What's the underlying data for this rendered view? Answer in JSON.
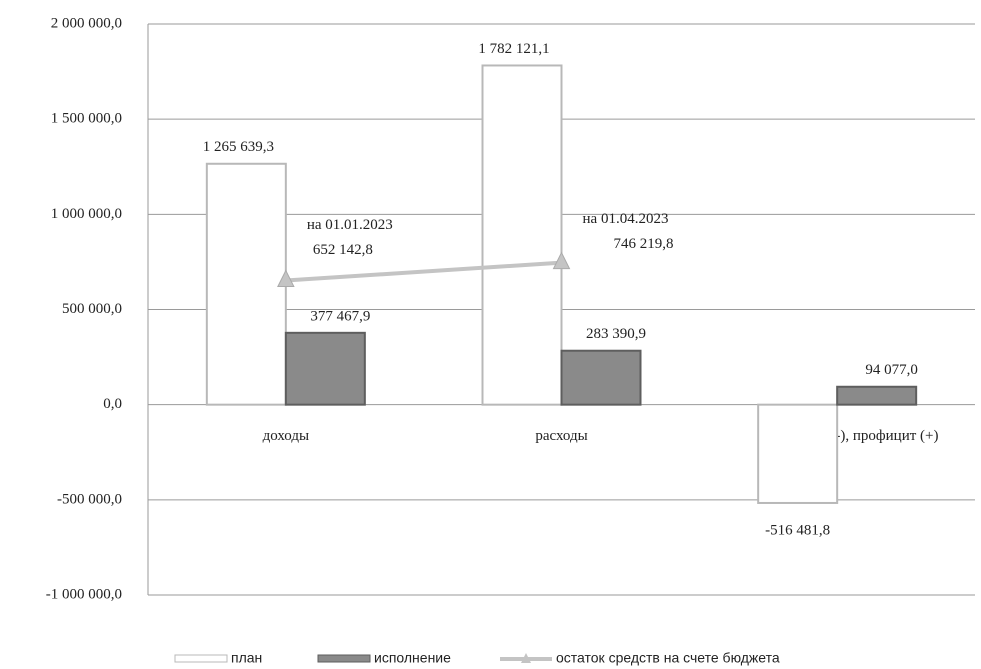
{
  "chart_data": {
    "type": "bar",
    "categories": [
      "доходы",
      "расходы",
      "дефицит (-), профицит (+)"
    ],
    "series": [
      {
        "name": "план",
        "type": "bar",
        "color": "#ffffff",
        "stroke": "#b8b8b8",
        "values": [
          1265639.3,
          1782121.1,
          -516481.8
        ],
        "value_labels": [
          "1 265 639,3",
          "1 782 121,1",
          "-516 481,8"
        ]
      },
      {
        "name": "исполнение",
        "type": "bar",
        "color": "#8a8a8a",
        "stroke": "#5e5e5e",
        "values": [
          377467.9,
          283390.9,
          94077.0
        ],
        "value_labels": [
          "377 467,9",
          "283 390,9",
          "94 077,0"
        ]
      },
      {
        "name": "остаток средств на счете бюджета",
        "type": "line",
        "color": "#c4c4c4",
        "marker": "triangle",
        "values": [
          652142.8,
          746219.8,
          null
        ],
        "value_labels": [
          "652 142,8",
          "746 219,8",
          null
        ],
        "point_labels": [
          "на 01.01.2023",
          "на 01.04.2023",
          null
        ]
      }
    ],
    "ylim": [
      -1000000,
      2000000
    ],
    "yticks": [
      {
        "value": -1000000,
        "label": "-1 000 000,0"
      },
      {
        "value": -500000,
        "label": "-500 000,0"
      },
      {
        "value": 0,
        "label": "0,0"
      },
      {
        "value": 500000,
        "label": "500 000,0"
      },
      {
        "value": 1000000,
        "label": "1 000 000,0"
      },
      {
        "value": 1500000,
        "label": "1 500 000,0"
      },
      {
        "value": 2000000,
        "label": "2 000 000,0"
      }
    ],
    "grid": true,
    "legend": "bottom"
  }
}
